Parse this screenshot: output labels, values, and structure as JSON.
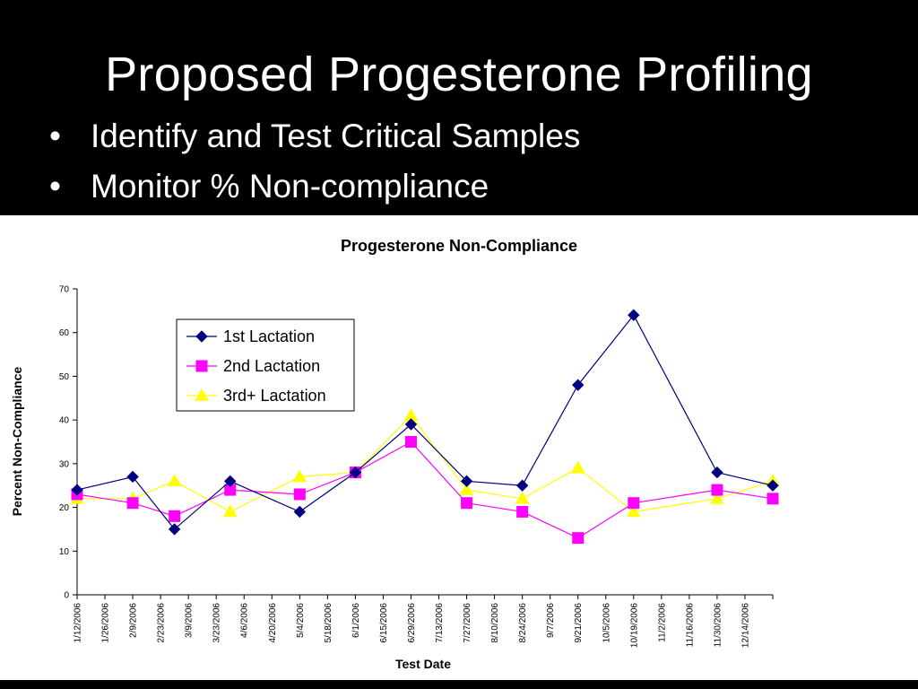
{
  "slide": {
    "title": "Proposed Progesterone Profiling",
    "bullets": [
      "Identify and Test Critical Samples",
      "Monitor % Non-compliance"
    ],
    "bullet_glyph": "•"
  },
  "colors": {
    "background": "#000000",
    "chart_background": "#ffffff",
    "series_1": "#000080",
    "series_2": "#FF00FF",
    "series_3": "#FFFF00"
  },
  "chart_data": {
    "type": "line",
    "title": "Progesterone Non-Compliance",
    "xlabel": "Test Date",
    "ylabel": "Percent Non-Compliance",
    "ylim": [
      0,
      70
    ],
    "yticks": [
      0,
      10,
      20,
      30,
      40,
      50,
      60,
      70
    ],
    "grid": false,
    "legend_position": "top-center",
    "x_tick_labels": [
      "1/12/2006",
      "1/26/2006",
      "2/9/2006",
      "2/23/2006",
      "3/9/2006",
      "3/23/2006",
      "4/6/2006",
      "4/20/2006",
      "5/4/2006",
      "5/18/2006",
      "6/1/2006",
      "6/15/2006",
      "6/29/2006",
      "7/13/2006",
      "7/27/2006",
      "8/10/2006",
      "8/24/2006",
      "9/7/2006",
      "9/21/2006",
      "10/5/2006",
      "10/19/2006",
      "11/2/2006",
      "11/16/2006",
      "11/30/2006",
      "12/14/2006"
    ],
    "x_range": [
      "1/12/2006",
      "12/28/2006"
    ],
    "series": [
      {
        "name": "1st Lactation",
        "marker": "diamond",
        "color": "#000080",
        "line_color": "#000080",
        "points": [
          {
            "x": "1/12/2006",
            "y": 24
          },
          {
            "x": "2/9/2006",
            "y": 27
          },
          {
            "x": "3/2/2006",
            "y": 15
          },
          {
            "x": "3/30/2006",
            "y": 26
          },
          {
            "x": "5/4/2006",
            "y": 19
          },
          {
            "x": "6/1/2006",
            "y": 28
          },
          {
            "x": "6/29/2006",
            "y": 39
          },
          {
            "x": "7/27/2006",
            "y": 26
          },
          {
            "x": "8/24/2006",
            "y": 25
          },
          {
            "x": "9/21/2006",
            "y": 48
          },
          {
            "x": "10/19/2006",
            "y": 64
          },
          {
            "x": "11/30/2006",
            "y": 28
          },
          {
            "x": "12/28/2006",
            "y": 25
          }
        ]
      },
      {
        "name": "2nd Lactation",
        "marker": "square",
        "color": "#FF00FF",
        "line_color": "#FF00FF",
        "points": [
          {
            "x": "1/12/2006",
            "y": 23
          },
          {
            "x": "2/9/2006",
            "y": 21
          },
          {
            "x": "3/2/2006",
            "y": 18
          },
          {
            "x": "3/30/2006",
            "y": 24
          },
          {
            "x": "5/4/2006",
            "y": 23
          },
          {
            "x": "6/1/2006",
            "y": 28
          },
          {
            "x": "6/29/2006",
            "y": 35
          },
          {
            "x": "7/27/2006",
            "y": 21
          },
          {
            "x": "8/24/2006",
            "y": 19
          },
          {
            "x": "9/21/2006",
            "y": 13
          },
          {
            "x": "10/19/2006",
            "y": 21
          },
          {
            "x": "11/30/2006",
            "y": 24
          },
          {
            "x": "12/28/2006",
            "y": 22
          }
        ]
      },
      {
        "name": "3rd+ Lactation",
        "marker": "triangle",
        "color": "#FFFF00",
        "line_color": "#FFFF00",
        "points": [
          {
            "x": "1/12/2006",
            "y": 22
          },
          {
            "x": "2/9/2006",
            "y": 22
          },
          {
            "x": "3/2/2006",
            "y": 26
          },
          {
            "x": "3/30/2006",
            "y": 19
          },
          {
            "x": "5/4/2006",
            "y": 27
          },
          {
            "x": "6/1/2006",
            "y": 28
          },
          {
            "x": "6/29/2006",
            "y": 41
          },
          {
            "x": "7/27/2006",
            "y": 24
          },
          {
            "x": "8/24/2006",
            "y": 22
          },
          {
            "x": "9/21/2006",
            "y": 29
          },
          {
            "x": "10/19/2006",
            "y": 19
          },
          {
            "x": "11/30/2006",
            "y": 22
          },
          {
            "x": "12/28/2006",
            "y": 26
          }
        ]
      }
    ]
  }
}
